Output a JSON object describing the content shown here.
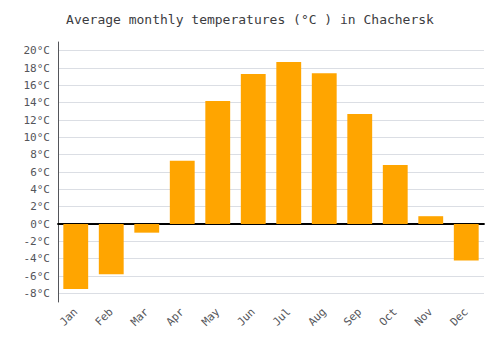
{
  "chart_data": {
    "type": "bar",
    "title": "Average monthly temperatures (°C ) in Chachersk",
    "categories": [
      "Jan",
      "Feb",
      "Mar",
      "Apr",
      "May",
      "Jun",
      "Jul",
      "Aug",
      "Sep",
      "Oct",
      "Nov",
      "Dec"
    ],
    "values": [
      -7.5,
      -5.8,
      -1.0,
      7.3,
      14.2,
      17.3,
      18.7,
      17.4,
      12.7,
      6.8,
      0.9,
      -4.2
    ],
    "color": "#FFA500",
    "ylim": [
      -9,
      21
    ],
    "yticks": [
      {
        "value": -8,
        "label": "-8°C"
      },
      {
        "value": -6,
        "label": "-6°C"
      },
      {
        "value": -4,
        "label": "-4°C"
      },
      {
        "value": -2,
        "label": "-2°C"
      },
      {
        "value": 0,
        "label": "0°C"
      },
      {
        "value": 2,
        "label": "2°C"
      },
      {
        "value": 4,
        "label": "4°C"
      },
      {
        "value": 6,
        "label": "6°C"
      },
      {
        "value": 8,
        "label": "8°C"
      },
      {
        "value": 10,
        "label": "10°C"
      },
      {
        "value": 12,
        "label": "12°C"
      },
      {
        "value": 14,
        "label": "14°C"
      },
      {
        "value": 16,
        "label": "16°C"
      },
      {
        "value": 18,
        "label": "18°C"
      },
      {
        "value": 20,
        "label": "20°C"
      }
    ],
    "grid": true
  }
}
